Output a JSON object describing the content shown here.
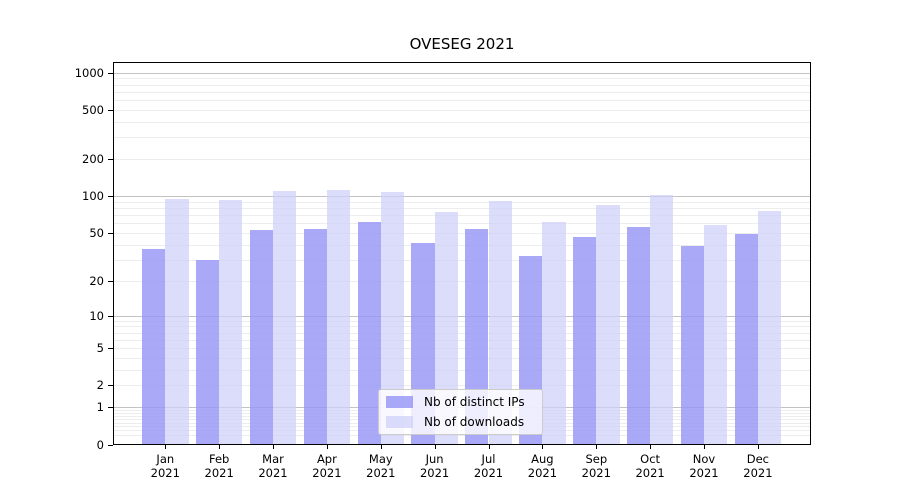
{
  "title": "OVESEG 2021",
  "chart_data": {
    "type": "bar",
    "title": "OVESEG 2021",
    "categories": [
      "Jan 2021",
      "Feb 2021",
      "Mar 2021",
      "Apr 2021",
      "May 2021",
      "Jun 2021",
      "Jul 2021",
      "Aug 2021",
      "Sep 2021",
      "Oct 2021",
      "Nov 2021",
      "Dec 2021"
    ],
    "series": [
      {
        "name": "Nb of distinct IPs",
        "color": "rgba(150,150,246,0.82)",
        "values": [
          37,
          30,
          53,
          54,
          62,
          41,
          54,
          32,
          46,
          56,
          39,
          49
        ]
      },
      {
        "name": "Nb of downloads",
        "color": "rgba(206,206,250,0.72)",
        "values": [
          95,
          94,
          111,
          113,
          108,
          75,
          92,
          61,
          84,
          102,
          58,
          76
        ]
      }
    ],
    "yscale": "log1p",
    "ylim": [
      0,
      1250
    ],
    "y_ticks": [
      1000,
      500,
      200,
      100,
      50,
      20,
      10,
      5,
      2,
      1,
      0
    ],
    "grid": true,
    "legend_position": "bottom-center",
    "colors": {
      "grid_major": "#c3c3c3",
      "grid_minor": "#ededed",
      "axis": "#000000",
      "bar_distinct_ips": "rgba(150,150,246,0.82)",
      "bar_downloads": "rgba(206,206,250,0.72)"
    }
  }
}
